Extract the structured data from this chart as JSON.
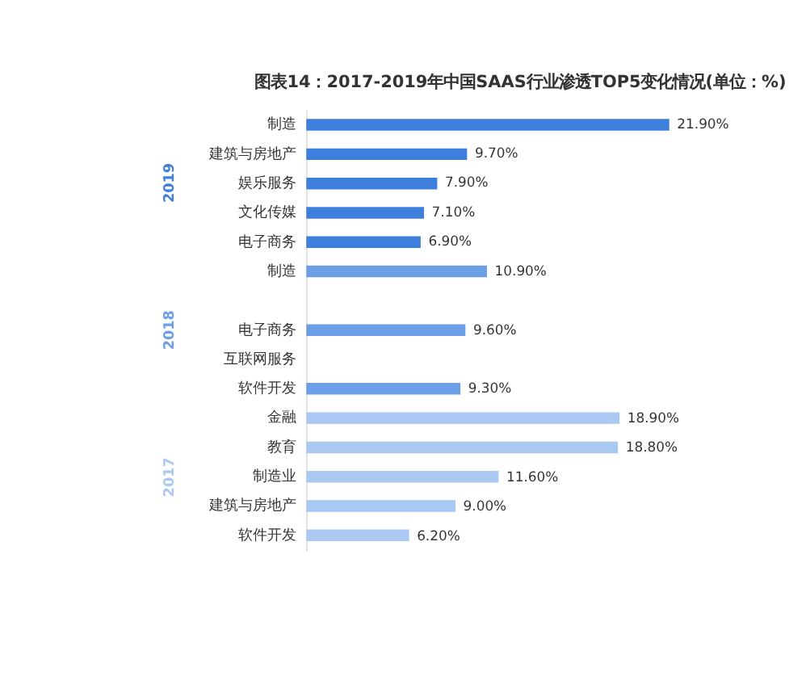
{
  "chart_data": {
    "type": "bar",
    "orientation": "horizontal",
    "title": "图表14：2017-2019年中国SAAS行业渗透TOP5变化情况(单位：%)",
    "categories": [
      "制造",
      "建筑与房地产",
      "娱乐服务",
      "文化传媒",
      "电子商务",
      "制造",
      null,
      "电子商务",
      "互联网服务",
      "软件开发",
      "金融",
      "教育",
      "制造业",
      "建筑与房地产",
      "软件开发"
    ],
    "series": [
      {
        "name": "2019",
        "color": "#3f7fdc",
        "values": [
          21.9,
          9.7,
          7.9,
          7.1,
          6.9,
          null,
          null,
          null,
          null,
          null,
          null,
          null,
          null,
          null,
          null
        ],
        "value_labels": [
          "21.90%",
          "9.70%",
          "7.90%",
          "7.10%",
          "6.90%",
          null,
          null,
          null,
          null,
          null,
          null,
          null,
          null,
          null,
          null
        ]
      },
      {
        "name": "2018",
        "color": "#6d9fe6",
        "values": [
          null,
          null,
          null,
          null,
          null,
          10.9,
          null,
          9.6,
          null,
          9.3,
          null,
          null,
          null,
          null,
          null
        ],
        "value_labels": [
          null,
          null,
          null,
          null,
          null,
          "10.90%",
          null,
          "9.60%",
          null,
          "9.30%",
          null,
          null,
          null,
          null,
          null
        ]
      },
      {
        "name": "2017",
        "color": "#a9c8f2",
        "values": [
          null,
          null,
          null,
          null,
          null,
          null,
          null,
          null,
          null,
          null,
          18.9,
          18.8,
          11.6,
          9.0,
          6.2
        ],
        "value_labels": [
          null,
          null,
          null,
          null,
          null,
          null,
          null,
          null,
          null,
          null,
          "18.90%",
          "18.80%",
          "11.60%",
          "9.00%",
          "6.20%"
        ]
      }
    ]
  }
}
